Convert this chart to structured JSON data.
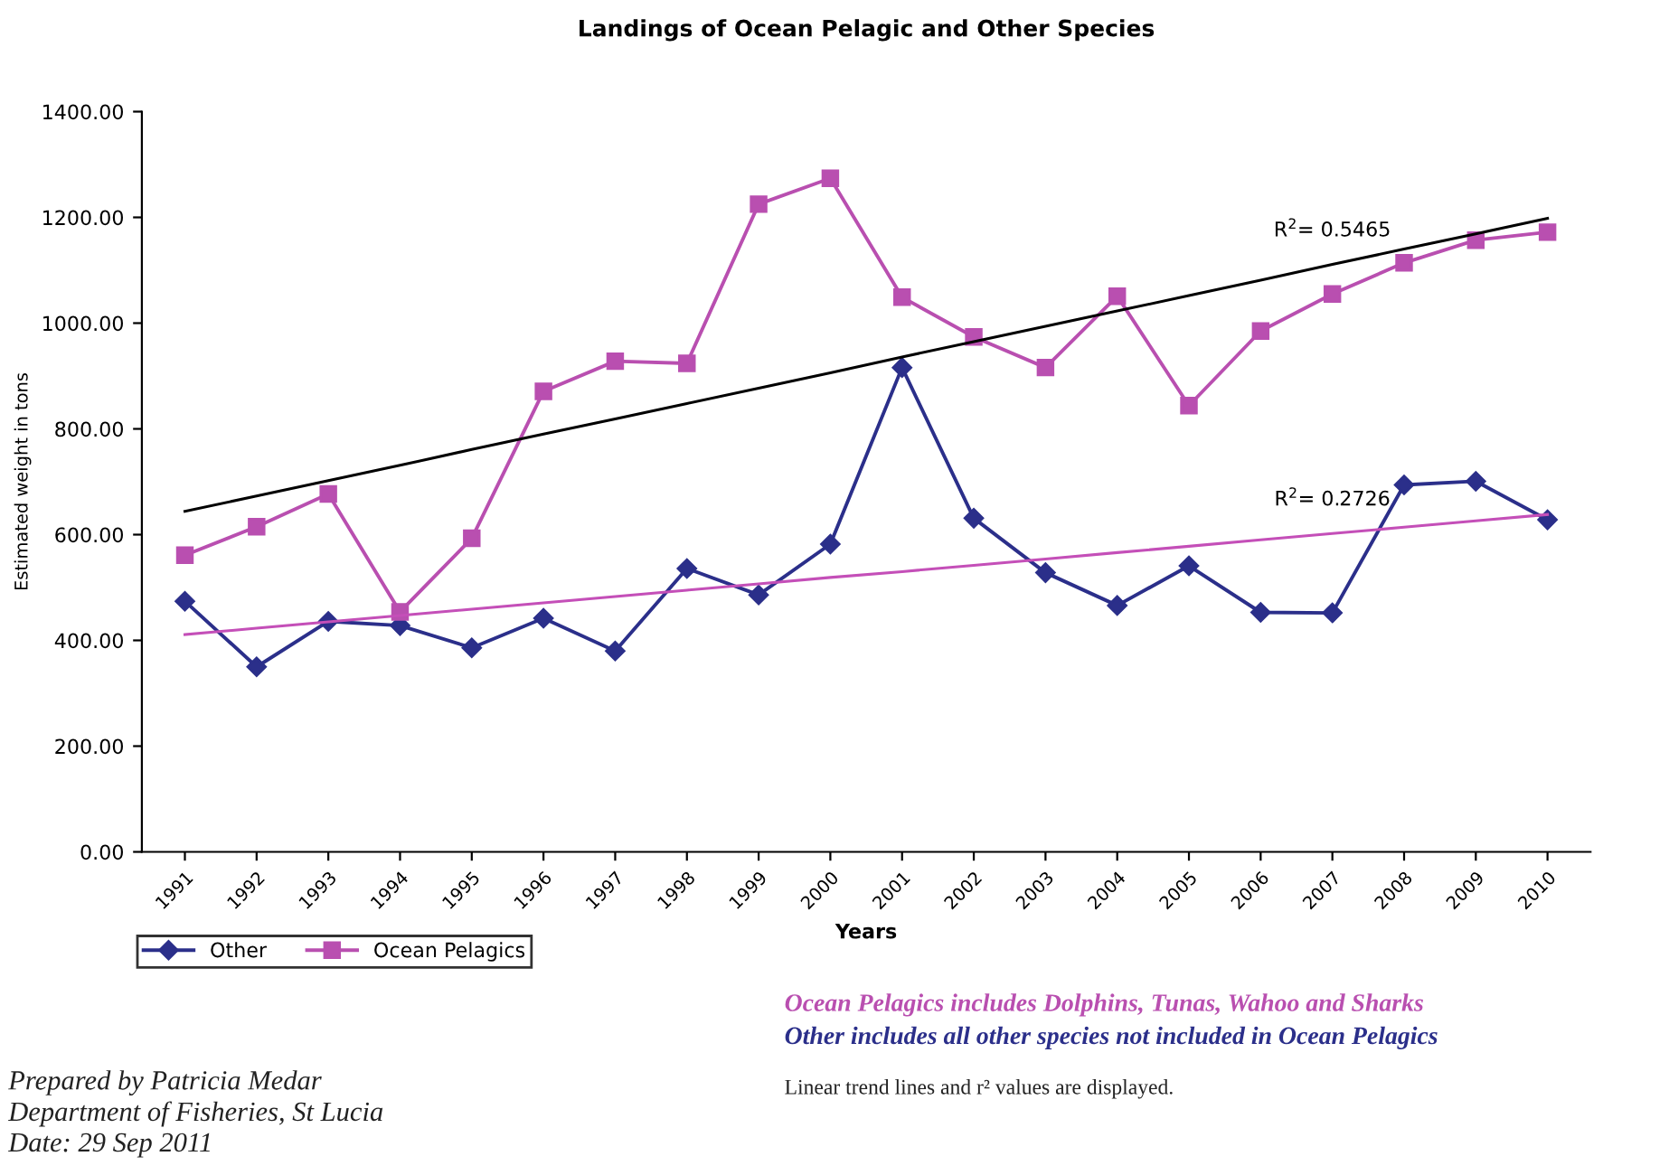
{
  "chart_data": {
    "type": "line",
    "title": "Landings of Ocean Pelagic and Other Species",
    "xlabel": "Years",
    "ylabel": "Estimated weight in tons",
    "categories": [
      "1991",
      "1992",
      "1993",
      "1994",
      "1995",
      "1996",
      "1997",
      "1998",
      "1999",
      "2000",
      "2001",
      "2002",
      "2003",
      "2004",
      "2005",
      "2006",
      "2007",
      "2008",
      "2009",
      "2010"
    ],
    "series": [
      {
        "name": "Other",
        "color": "#2b2f8a",
        "marker": "diamond",
        "values": [
          474,
          350,
          436,
          428,
          386,
          442,
          380,
          536,
          486,
          582,
          916,
          631,
          528,
          466,
          541,
          453,
          452,
          694,
          701,
          628
        ]
      },
      {
        "name": "Ocean Pelagics",
        "color": "#b94fb0",
        "marker": "square",
        "values": [
          561,
          615,
          677,
          454,
          593,
          871,
          928,
          924,
          1225,
          1274,
          1049,
          974,
          916,
          1051,
          844,
          985,
          1055,
          1114,
          1157,
          1172
        ]
      },
      {
        "type": "line",
        "color": "#000000",
        "marker": "none",
        "values": [
          644,
          673,
          702,
          731,
          761,
          790,
          819,
          848,
          877,
          906,
          936,
          965,
          994,
          1023,
          1052,
          1081,
          1111,
          1140,
          1169,
          1198
        ]
      },
      {
        "type": "line",
        "color": "#c44fb8",
        "marker": "none",
        "values": [
          411,
          423,
          435,
          447,
          459,
          471,
          483,
          495,
          507,
          519,
          530,
          542,
          554,
          566,
          578,
          590,
          602,
          614,
          626,
          638
        ]
      }
    ],
    "ylim": [
      0,
      1400
    ],
    "yticks": [
      {
        "value": 0,
        "label": "0.00"
      },
      {
        "value": 200,
        "label": "200.00"
      },
      {
        "value": 400,
        "label": "400.00"
      },
      {
        "value": 600,
        "label": "600.00"
      },
      {
        "value": 800,
        "label": "800.00"
      },
      {
        "value": 1000,
        "label": "1000.00"
      },
      {
        "value": 1200,
        "label": "1200.00"
      },
      {
        "value": 1400,
        "label": "1400.00"
      }
    ],
    "grid": false,
    "legend": "bottom left",
    "line_style": "solid",
    "annotations": [
      "R$^{2}$= 0.5465",
      "R$^{2}$= 0.2726",
      "Ocean Pelagics includes Dolphins, Tunas, Wahoo and Sharks",
      "Other includes all other species not included in Ocean Pelagics",
      "Linear trend lines and r² values are displayed.",
      "Prepared by Patricia Medar\nDepartment of Fisheries, St Lucia\nDate: 29 Sep 2011"
    ]
  }
}
